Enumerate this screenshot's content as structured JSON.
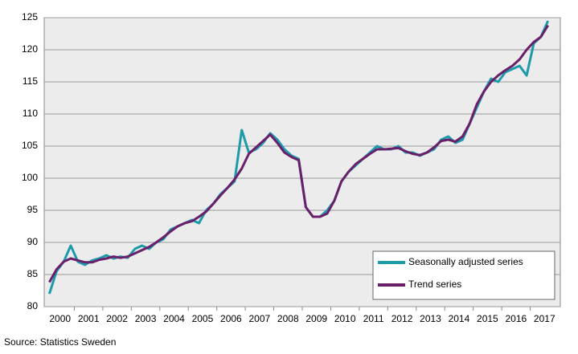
{
  "chart_data": {
    "type": "line",
    "categories": [
      "2000",
      null,
      null,
      null,
      "2001",
      null,
      null,
      null,
      "2002",
      null,
      null,
      null,
      "2003",
      null,
      null,
      null,
      "2004",
      null,
      null,
      null,
      "2005",
      null,
      null,
      null,
      "2006",
      null,
      null,
      null,
      "2007",
      null,
      null,
      null,
      "2008",
      null,
      null,
      null,
      "2009",
      null,
      null,
      null,
      "2010",
      null,
      null,
      null,
      "2011",
      null,
      null,
      null,
      "2012",
      null,
      null,
      null,
      "2013",
      null,
      null,
      null,
      "2014",
      null,
      null,
      null,
      "2015",
      null,
      null,
      null,
      "2016",
      null,
      null,
      null,
      "2017",
      null,
      null
    ],
    "series": [
      {
        "name": "Seasonally adjusted series",
        "color": "#1e9bab",
        "values": [
          82,
          85.5,
          87,
          89.5,
          87,
          86.5,
          87.2,
          87.5,
          88,
          87.5,
          87.8,
          87.6,
          89,
          89.5,
          89,
          90,
          90.5,
          92,
          92.5,
          93,
          93.5,
          93,
          95,
          96,
          97.5,
          98.5,
          99.5,
          107.5,
          104,
          104.5,
          105.5,
          107,
          106,
          104.5,
          103.5,
          103,
          95.5,
          94,
          94,
          95,
          96.5,
          99.5,
          101,
          102,
          103,
          104,
          105,
          104.5,
          104.5,
          105,
          104,
          104,
          103.5,
          104,
          104.5,
          106,
          106.5,
          105.5,
          106,
          108.5,
          111,
          113.5,
          115.5,
          115,
          116.5,
          117,
          117.5,
          116,
          121,
          122,
          124.5
        ]
      },
      {
        "name": "Trend series",
        "color": "#6a1f6a",
        "values": [
          83.8,
          85.8,
          87,
          87.5,
          87.2,
          86.9,
          86.9,
          87.3,
          87.5,
          87.8,
          87.6,
          87.8,
          88.3,
          88.8,
          89.3,
          90,
          90.8,
          91.7,
          92.5,
          93,
          93.3,
          94,
          94.8,
          96,
          97.3,
          98.5,
          99.8,
          101.5,
          103.8,
          104.8,
          105.8,
          106.8,
          105.5,
          104,
          103.3,
          102.8,
          95.5,
          94,
          94,
          94.5,
          96.5,
          99.5,
          101,
          102.2,
          103,
          103.8,
          104.5,
          104.5,
          104.6,
          104.7,
          104.2,
          103.8,
          103.6,
          104,
          104.8,
          105.8,
          106,
          105.7,
          106.5,
          108.5,
          111.5,
          113.5,
          115,
          116,
          116.8,
          117.5,
          118.5,
          120,
          121.2,
          122,
          123.8
        ]
      }
    ],
    "ylim": [
      80,
      125
    ],
    "yticks": [
      80,
      85,
      90,
      95,
      100,
      105,
      110,
      115,
      120,
      125
    ],
    "grid": true,
    "legend": "lower right",
    "source": "Source:  Statistics Sweden"
  }
}
